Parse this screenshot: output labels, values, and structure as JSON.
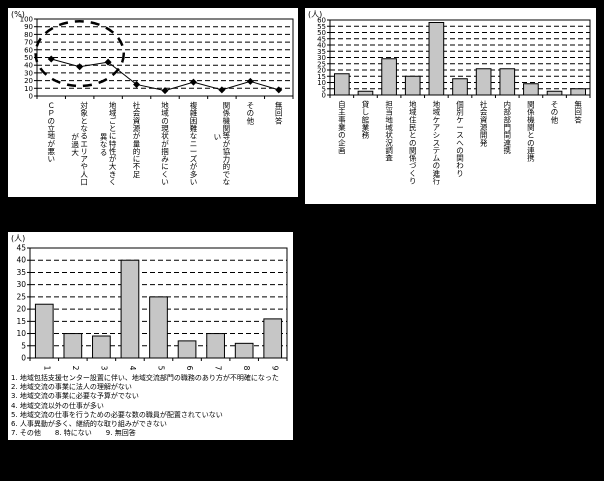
{
  "page": {
    "background": "#000000",
    "panel_background": "#ffffff",
    "ink": "#000000",
    "bar_fill": "#c6c6c6"
  },
  "chart_data": [
    {
      "name": "line-chart-difficulty-reasons",
      "type": "line",
      "unit": "(%)",
      "ymin": 0,
      "ymax": 100,
      "ystep": 10,
      "grid": "dashed-horizontal",
      "line_color": "#000000",
      "marker": "diamond",
      "annotation": {
        "type": "dashed-ellipse",
        "over_categories": [
          0,
          2
        ]
      },
      "categories": [
        "ＣＰの立地が悪い",
        "対象となるエリアや人口が過大",
        "地域ごとに特性が大きく異なる",
        "社会資源が量的に不足",
        "地域の現状が掴みにくい",
        "複雑困難なニーズが多い",
        "関係機関等が協力的でない",
        "その他",
        "無回答"
      ],
      "values": [
        48,
        38,
        44,
        15,
        7,
        18,
        8,
        19,
        8
      ]
    },
    {
      "name": "bar-chart-duties",
      "type": "bar",
      "unit": "(人)",
      "ymin": 0,
      "ymax": 60,
      "ystep": 5,
      "grid": "dashed-horizontal",
      "bar_color": "#c6c6c6",
      "categories": [
        "自主事業の企画",
        "貸し館業務",
        "担当地域状況調査",
        "地域住民との関係づくり",
        "地域ケアシステムの進行",
        "個別ケースへの関わり",
        "社会資源開発",
        "内部部門間連携",
        "関係機関との連携",
        "その他",
        "無回答"
      ],
      "values": [
        17,
        3,
        29,
        15,
        58,
        13,
        21,
        21,
        9,
        3,
        5
      ]
    },
    {
      "name": "bar-chart-issues",
      "type": "bar",
      "unit": "(人)",
      "ymin": 0,
      "ymax": 45,
      "ystep": 5,
      "grid": "dashed-horizontal",
      "bar_color": "#c6c6c6",
      "rotated_digit_labels": true,
      "categories": [
        "1",
        "2",
        "3",
        "4",
        "5",
        "6",
        "7",
        "8",
        "9"
      ],
      "values": [
        22,
        10,
        9,
        40,
        25,
        7,
        10,
        6,
        16
      ],
      "legend_lines": [
        "1. 地域包括支援センター設置に伴い、地域交流部門の職務のあり方が不明確になった",
        "2. 地域交流の事業に法人の理解がない",
        "3. 地域交流の事業に必要な予算がでない",
        "4. 地域交流以外の仕事が多い",
        "5. 地域交流の仕事を行うための必要な数の職員が配置されていない",
        "6. 人事異動が多く、継続的な取り組みができない",
        "7. その他　　8. 特にない　　9. 無回答"
      ]
    }
  ]
}
